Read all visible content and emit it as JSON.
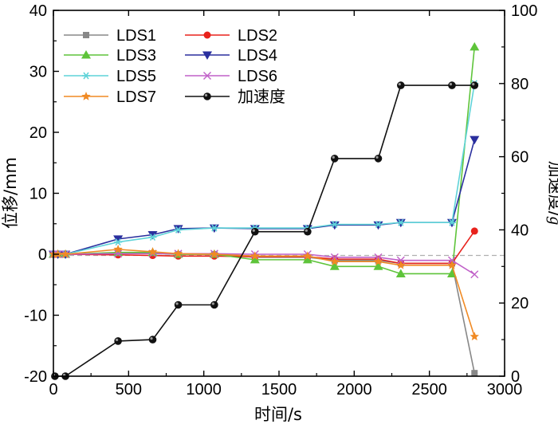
{
  "chart_data": {
    "type": "line",
    "xlabel": "时间/s",
    "ylabel_left": "位移/mm",
    "ylabel_right_prefix": "加速度/",
    "ylabel_right_unit": "g",
    "xlim": [
      0,
      3000
    ],
    "ylim_left": [
      -20,
      40
    ],
    "ylim_right": [
      0,
      100
    ],
    "x_ticks": [
      0,
      500,
      1000,
      1500,
      2000,
      2500,
      3000
    ],
    "y_left_ticks": [
      -20,
      -10,
      0,
      10,
      20,
      30,
      40
    ],
    "y_right_ticks": [
      0,
      20,
      40,
      60,
      80,
      100
    ],
    "x_tick_labels": [
      "0",
      "500",
      "1000",
      "1500",
      "2000",
      "2500",
      "3000"
    ],
    "y_left_tick_labels": [
      "-20",
      "-10",
      "0",
      "10",
      "20",
      "30",
      "40"
    ],
    "y_right_tick_labels": [
      "0",
      "20",
      "40",
      "60",
      "80",
      "100"
    ],
    "reference_line": {
      "axis": "right",
      "value": 33,
      "style": "dashed",
      "color": "#b0b0b0"
    },
    "grid": false,
    "legend_position": "top-left",
    "series": [
      {
        "name": "LDS1",
        "color": "#888888",
        "marker": "square",
        "axis": "left",
        "x": [
          0,
          30,
          80,
          430,
          660,
          830,
          1070,
          1340,
          1690,
          1870,
          2160,
          2310,
          2650,
          2800
        ],
        "y": [
          0,
          0,
          0,
          0.2,
          0.1,
          0,
          0,
          -0.5,
          -0.5,
          -1.0,
          -1.0,
          -1.5,
          -1.5,
          -19.5
        ]
      },
      {
        "name": "LDS2",
        "color": "#e8221c",
        "marker": "circle",
        "axis": "left",
        "x": [
          0,
          30,
          80,
          430,
          660,
          830,
          1070,
          1340,
          1690,
          1870,
          2160,
          2310,
          2650,
          2800
        ],
        "y": [
          0,
          0,
          0,
          -0.1,
          -0.2,
          -0.3,
          -0.3,
          -0.4,
          -0.4,
          -0.8,
          -0.8,
          -1.5,
          -1.5,
          3.8
        ]
      },
      {
        "name": "LDS3",
        "color": "#5ec43a",
        "marker": "triangle-up",
        "axis": "left",
        "x": [
          0,
          30,
          80,
          430,
          660,
          830,
          1070,
          1340,
          1690,
          1870,
          2160,
          2310,
          2650,
          2800
        ],
        "y": [
          0,
          0,
          0,
          0.3,
          0.3,
          0,
          0,
          -0.9,
          -0.9,
          -2.0,
          -2.0,
          -3.2,
          -3.2,
          34.0
        ]
      },
      {
        "name": "LDS4",
        "color": "#2a2f9e",
        "marker": "triangle-down",
        "axis": "left",
        "x": [
          0,
          30,
          80,
          430,
          660,
          830,
          1070,
          1340,
          1690,
          1870,
          2160,
          2310,
          2650,
          2800
        ],
        "y": [
          0,
          0,
          0,
          2.5,
          3.2,
          4.2,
          4.3,
          4.2,
          4.2,
          4.8,
          4.8,
          5.2,
          5.2,
          18.8
        ]
      },
      {
        "name": "LDS5",
        "color": "#5fd3d8",
        "marker": "asterisk",
        "axis": "left",
        "x": [
          0,
          30,
          80,
          430,
          660,
          830,
          1070,
          1340,
          1690,
          1870,
          2160,
          2310,
          2650,
          2800
        ],
        "y": [
          0,
          0,
          0,
          2.0,
          2.8,
          4.0,
          4.3,
          4.3,
          4.3,
          4.9,
          4.9,
          5.2,
          5.2,
          28.0
        ]
      },
      {
        "name": "LDS6",
        "color": "#c060c8",
        "marker": "x",
        "axis": "left",
        "x": [
          0,
          30,
          80,
          430,
          660,
          830,
          1070,
          1340,
          1690,
          1870,
          2160,
          2310,
          2650,
          2800
        ],
        "y": [
          0,
          0,
          0,
          0.1,
          0.1,
          0.1,
          0.1,
          0,
          0,
          -0.5,
          -0.5,
          -1.0,
          -1.0,
          -3.3
        ]
      },
      {
        "name": "LDS7",
        "color": "#f08a24",
        "marker": "star",
        "axis": "left",
        "x": [
          0,
          30,
          80,
          430,
          660,
          830,
          1070,
          1340,
          1690,
          1870,
          2160,
          2310,
          2650,
          2800
        ],
        "y": [
          0,
          0,
          0,
          0.8,
          0.4,
          0.1,
          0,
          -0.3,
          -0.3,
          -1.2,
          -1.2,
          -1.8,
          -1.8,
          -13.5
        ]
      },
      {
        "name": "加速度",
        "color": "#111111",
        "marker": "ball",
        "axis": "right",
        "x": [
          10,
          80,
          430,
          660,
          830,
          1070,
          1340,
          1690,
          1870,
          2160,
          2310,
          2650,
          2800
        ],
        "y": [
          0,
          0,
          9.6,
          10,
          19.5,
          19.5,
          39.5,
          39.5,
          59.5,
          59.5,
          79.5,
          79.5,
          79.5
        ]
      }
    ]
  }
}
